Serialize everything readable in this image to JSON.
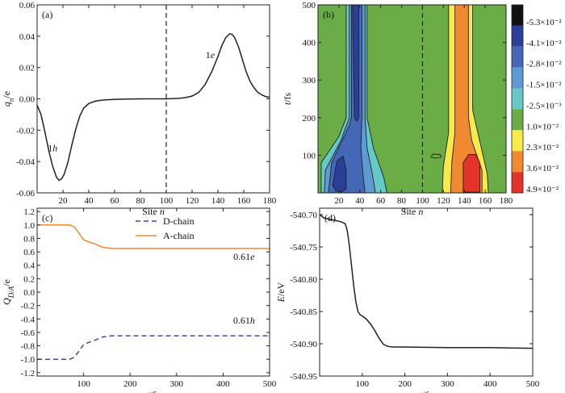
{
  "chart_data": [
    {
      "panel": "(a)",
      "type": "line",
      "xlabel_text": "Site ",
      "xlabel_var": "n",
      "ylabel_var": "q",
      "ylabel_sub": "n",
      "ylabel_unit": "/e",
      "xlim": [
        0,
        180
      ],
      "ylim": [
        -0.06,
        0.06
      ],
      "xticks": [
        20,
        40,
        60,
        80,
        100,
        120,
        140,
        160,
        180
      ],
      "yticks": [
        -0.06,
        -0.04,
        -0.02,
        0.0,
        0.02,
        0.04,
        0.06
      ],
      "ytick_labels": [
        "-0.06",
        "-0.04",
        "-0.02",
        "0.00",
        "0.02",
        "0.04",
        "0.06"
      ],
      "dashed_x": 100,
      "series": [
        {
          "color": "#222222",
          "x": [
            0,
            3,
            6,
            9,
            12,
            15,
            17,
            19,
            21,
            24,
            27,
            30,
            33,
            36,
            40,
            45,
            50,
            60,
            70,
            80,
            90,
            100,
            110,
            115,
            120,
            125,
            130,
            135,
            140,
            143,
            146,
            149,
            151,
            153,
            156,
            159,
            162,
            165,
            168,
            171,
            174,
            177,
            180
          ],
          "y": [
            -0.004,
            -0.01,
            -0.021,
            -0.033,
            -0.043,
            -0.05,
            -0.052,
            -0.051,
            -0.048,
            -0.04,
            -0.029,
            -0.019,
            -0.011,
            -0.006,
            -0.003,
            -0.0015,
            -0.0008,
            -0.0003,
            -0.0001,
            0.0,
            0.0,
            0.0,
            0.0003,
            0.0008,
            0.0018,
            0.004,
            0.009,
            0.017,
            0.027,
            0.034,
            0.039,
            0.0415,
            0.0412,
            0.039,
            0.033,
            0.025,
            0.017,
            0.011,
            0.007,
            0.004,
            0.0025,
            0.0015,
            0.001
          ]
        }
      ],
      "annotations": [
        {
          "text": "1",
          "ital": "h",
          "x": 12,
          "y": -0.0335
        },
        {
          "text": "1",
          "ital": "e",
          "x": 134,
          "y": 0.026
        }
      ]
    },
    {
      "panel": "(b)",
      "type": "heatmap",
      "xlabel_text": "Site ",
      "xlabel_var": "n",
      "ylabel_var": "t",
      "ylabel_unit": "/fs",
      "xlim": [
        0,
        180
      ],
      "ylim": [
        0,
        500
      ],
      "xticks": [
        20,
        40,
        60,
        80,
        100,
        120,
        140,
        160,
        180
      ],
      "yticks": [
        100,
        200,
        300,
        400,
        500
      ],
      "dashed_x": 100,
      "background_color": "#6aac46",
      "colorbar": {
        "labels": [
          "-5.3×10⁻²",
          "-4.1×10⁻²",
          "-2.8×10⁻²",
          "-1.5×10⁻²",
          "-2.5×10⁻³",
          "1.0×10⁻²",
          "2.3×10⁻²",
          "3.6×10⁻²",
          "4.9×10⁻²"
        ],
        "colors": [
          "#111111",
          "#2a3f97",
          "#4468b5",
          "#5e9bd3",
          "#67c9c6",
          "#6aac46",
          "#f7ea4a",
          "#f08a30",
          "#e3332b"
        ]
      },
      "regions": [
        {
          "kind": "bottom",
          "color": "#67c9c6",
          "left": [
            [
              3,
              0
            ],
            [
              3,
              80
            ],
            [
              20,
              150
            ],
            [
              27,
              200
            ],
            [
              27,
              500
            ]
          ],
          "right": [
            [
              66,
              0
            ],
            [
              63,
              40
            ],
            [
              53,
              120
            ],
            [
              47,
              200
            ],
            [
              47,
              500
            ]
          ]
        },
        {
          "kind": "bottom",
          "color": "#5e9bd3",
          "left": [
            [
              6,
              0
            ],
            [
              7,
              60
            ],
            [
              22,
              140
            ],
            [
              30,
              200
            ],
            [
              30,
              500
            ]
          ],
          "right": [
            [
              55,
              0
            ],
            [
              52,
              50
            ],
            [
              47,
              120
            ],
            [
              45,
              200
            ],
            [
              45,
              500
            ]
          ]
        },
        {
          "kind": "bottom",
          "color": "#4468b5",
          "left": [
            [
              10,
              0
            ],
            [
              13,
              80
            ],
            [
              30,
              180
            ],
            [
              32,
              200
            ],
            [
              32,
              500
            ]
          ],
          "right": [
            [
              45,
              0
            ],
            [
              43,
              50
            ],
            [
              41,
              120
            ],
            [
              42,
              200
            ],
            [
              42,
              500
            ]
          ]
        },
        {
          "kind": "bottom",
          "color": "#2a3f97",
          "left": [
            [
              33,
              500
            ],
            [
              35,
              200
            ],
            [
              37,
              190
            ],
            [
              39,
              200
            ],
            [
              39,
              500
            ]
          ],
          "right": []
        },
        {
          "kind": "closed",
          "color": "#2a3f97",
          "points": [
            [
              14,
              20
            ],
            [
              18,
              85
            ],
            [
              24,
              98
            ],
            [
              27,
              60
            ],
            [
              27,
              10
            ],
            [
              22,
              2
            ],
            [
              17,
              5
            ]
          ]
        },
        {
          "kind": "bottom",
          "color": "#f7ea4a",
          "left": [
            [
              119,
              0
            ],
            [
              120,
              70
            ],
            [
              125,
              160
            ],
            [
              125,
              500
            ]
          ],
          "right": [
            [
              163,
              0
            ],
            [
              162,
              50
            ],
            [
              153,
              160
            ],
            [
              148,
              220
            ],
            [
              148,
              500
            ]
          ]
        },
        {
          "kind": "bottom",
          "color": "#f08a30",
          "left": [
            [
              127,
              0
            ],
            [
              128,
              80
            ],
            [
              131,
              160
            ],
            [
              131,
              500
            ]
          ],
          "right": [
            [
              157,
              0
            ],
            [
              157,
              60
            ],
            [
              147,
              140
            ],
            [
              144,
              200
            ],
            [
              144,
              500
            ]
          ]
        },
        {
          "kind": "closed",
          "color": "#e3332b",
          "points": [
            [
              139,
              2
            ],
            [
              139,
              80
            ],
            [
              144,
              102
            ],
            [
              151,
              102
            ],
            [
              155,
              80
            ],
            [
              155,
              2
            ]
          ]
        },
        {
          "kind": "closed",
          "color": "#6aac46",
          "points": [
            [
              108,
              95
            ],
            [
              112,
              92
            ],
            [
              118,
              95
            ],
            [
              117,
              102
            ],
            [
              110,
              103
            ]
          ]
        }
      ]
    },
    {
      "panel": "(c)",
      "type": "line",
      "xlabel_var": "t",
      "xlabel_unit": "/fs",
      "ylabel_var": "Q",
      "ylabel_sub": "D/A",
      "ylabel_unit": "/e",
      "xlim": [
        0,
        500
      ],
      "ylim": [
        -1.25,
        1.25
      ],
      "xticks": [
        100,
        200,
        300,
        400,
        500
      ],
      "yticks": [
        -1.2,
        -1.0,
        -0.8,
        -0.6,
        -0.4,
        -0.2,
        0.0,
        0.2,
        0.4,
        0.6,
        0.8,
        1.0,
        1.2
      ],
      "ytick_labels": [
        "-1.2",
        "-1.0",
        "-0.8",
        "-0.6",
        "-0.4",
        "-0.2",
        "0.0",
        "0.2",
        "0.4",
        "0.6",
        "0.8",
        "1.0",
        "1.2"
      ],
      "legend": "top-center",
      "series": [
        {
          "name": "D-chain",
          "color": "#3b4ba8",
          "dash": "6,4",
          "x": [
            0,
            70,
            80,
            90,
            100,
            110,
            120,
            130,
            140,
            150,
            160,
            200,
            300,
            400,
            500
          ],
          "y": [
            -1.0,
            -1.0,
            -0.97,
            -0.88,
            -0.78,
            -0.75,
            -0.73,
            -0.7,
            -0.67,
            -0.66,
            -0.65,
            -0.65,
            -0.65,
            -0.65,
            -0.65
          ]
        },
        {
          "name": "A-chain",
          "color": "#ee8a32",
          "dash": "",
          "x": [
            0,
            70,
            80,
            90,
            100,
            110,
            120,
            130,
            140,
            150,
            160,
            200,
            300,
            400,
            500
          ],
          "y": [
            1.0,
            1.0,
            0.97,
            0.88,
            0.78,
            0.75,
            0.73,
            0.7,
            0.67,
            0.66,
            0.65,
            0.65,
            0.65,
            0.65,
            0.65
          ]
        }
      ],
      "annotations": [
        {
          "text": "0.61",
          "ital": "e",
          "x": 445,
          "y": 0.48
        },
        {
          "text": "0.61",
          "ital": "h",
          "x": 445,
          "y": -0.47
        }
      ]
    },
    {
      "panel": "(d)",
      "type": "line",
      "xlabel_var": "t",
      "xlabel_unit": "/fs",
      "ylabel_var": "E",
      "ylabel_unit": "/eV",
      "xlim": [
        0,
        500
      ],
      "ylim": [
        -540.95,
        -540.69
      ],
      "xticks": [
        100,
        200,
        300,
        400,
        500
      ],
      "yticks": [
        -540.95,
        -540.9,
        -540.85,
        -540.8,
        -540.75,
        -540.7
      ],
      "ytick_labels": [
        "-540.95",
        "-540.90",
        "-540.85",
        "-540.80",
        "-540.75",
        "-540.70"
      ],
      "series": [
        {
          "color": "#222222",
          "x": [
            0,
            10,
            30,
            50,
            60,
            65,
            70,
            75,
            80,
            85,
            90,
            95,
            100,
            110,
            120,
            130,
            140,
            150,
            160,
            170,
            200,
            300,
            400,
            500
          ],
          "y": [
            -540.7,
            -540.705,
            -540.708,
            -540.711,
            -540.714,
            -540.725,
            -540.75,
            -540.78,
            -540.81,
            -540.835,
            -540.85,
            -540.855,
            -540.857,
            -540.862,
            -540.87,
            -540.88,
            -540.892,
            -540.901,
            -540.904,
            -540.905,
            -540.905,
            -540.906,
            -540.906,
            -540.907
          ]
        }
      ]
    }
  ]
}
